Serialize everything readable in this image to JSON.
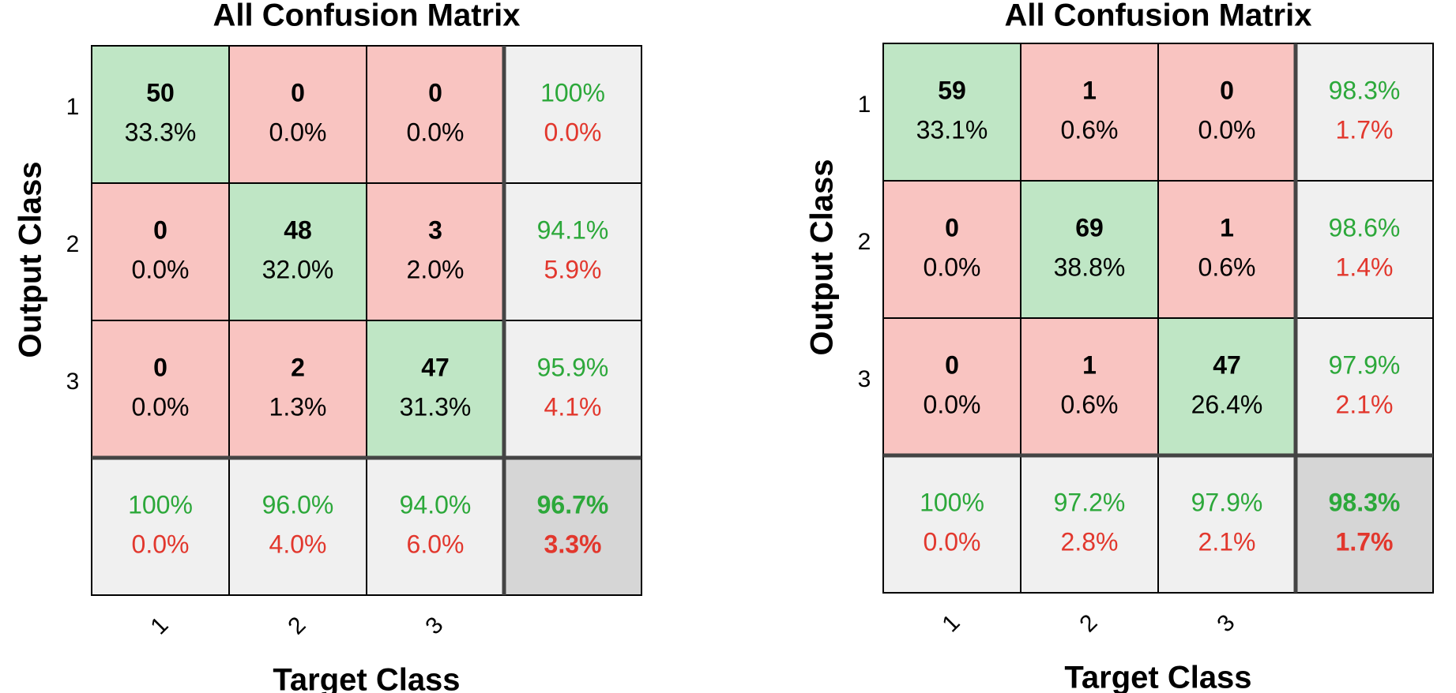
{
  "colors": {
    "correct_cell": "#bfe6c5",
    "wrong_cell": "#f9c4c1",
    "summary_cell": "#f0f0f0",
    "overall_cell": "#d6d6d6",
    "green_text": "#2ca83a",
    "red_text": "#e2372d",
    "grid": "#000000",
    "separator": "#444444"
  },
  "chart_data": [
    {
      "type": "heatmap",
      "title": "All Confusion Matrix",
      "xlabel": "Target Class",
      "ylabel": "Output Class",
      "classes": [
        "1",
        "2",
        "3"
      ],
      "counts": [
        [
          50,
          0,
          0
        ],
        [
          0,
          48,
          3
        ],
        [
          0,
          2,
          47
        ]
      ],
      "percents": [
        [
          "33.3%",
          "0.0%",
          "0.0%"
        ],
        [
          "0.0%",
          "32.0%",
          "2.0%"
        ],
        [
          "0.0%",
          "1.3%",
          "31.3%"
        ]
      ],
      "row_summary": [
        [
          "100%",
          "0.0%"
        ],
        [
          "94.1%",
          "5.9%"
        ],
        [
          "95.9%",
          "4.1%"
        ]
      ],
      "col_summary": [
        [
          "100%",
          "0.0%"
        ],
        [
          "96.0%",
          "4.0%"
        ],
        [
          "94.0%",
          "6.0%"
        ]
      ],
      "overall": [
        "96.7%",
        "3.3%"
      ]
    },
    {
      "type": "heatmap",
      "title": "All Confusion Matrix",
      "xlabel": "Target Class",
      "ylabel": "Output Class",
      "classes": [
        "1",
        "2",
        "3"
      ],
      "counts": [
        [
          59,
          1,
          0
        ],
        [
          0,
          69,
          1
        ],
        [
          0,
          1,
          47
        ]
      ],
      "percents": [
        [
          "33.1%",
          "0.6%",
          "0.0%"
        ],
        [
          "0.0%",
          "38.8%",
          "0.6%"
        ],
        [
          "0.0%",
          "0.6%",
          "26.4%"
        ]
      ],
      "row_summary": [
        [
          "98.3%",
          "1.7%"
        ],
        [
          "98.6%",
          "1.4%"
        ],
        [
          "97.9%",
          "2.1%"
        ]
      ],
      "col_summary": [
        [
          "100%",
          "0.0%"
        ],
        [
          "97.2%",
          "2.8%"
        ],
        [
          "97.9%",
          "2.1%"
        ]
      ],
      "overall": [
        "98.3%",
        "1.7%"
      ]
    }
  ]
}
